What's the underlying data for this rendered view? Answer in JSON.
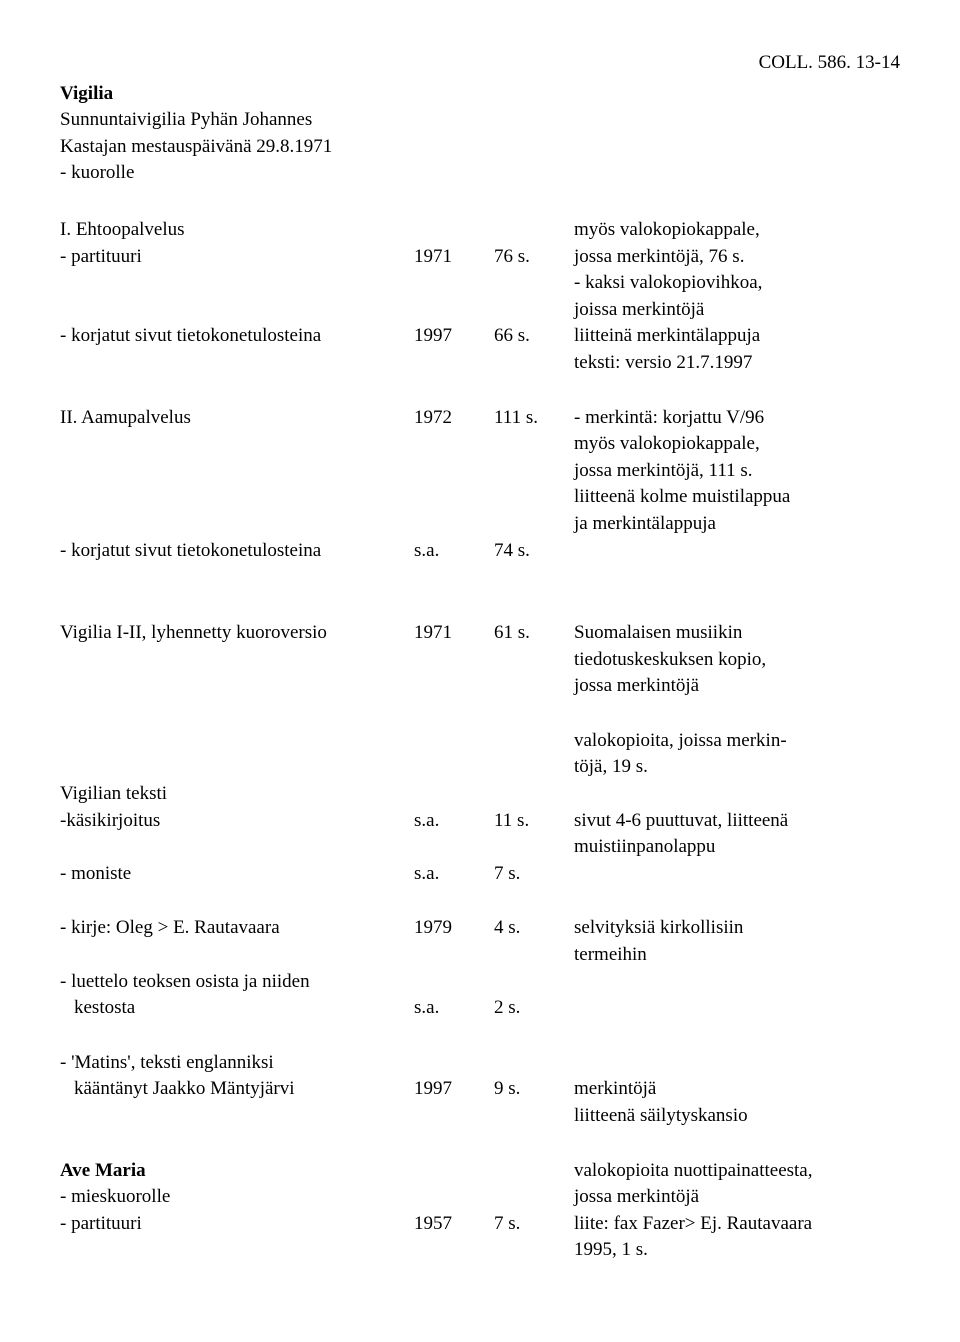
{
  "header_ref": "COLL. 586. 13-14",
  "header": {
    "title": "Vigilia",
    "line2": "Sunnuntaivigilia Pyhän Johannes",
    "line3": "Kastajan mestauspäivänä 29.8.1971",
    "line4": "- kuorolle"
  },
  "rows": [
    {
      "c1": "I. Ehtoopalvelus",
      "c2": "",
      "c3": "",
      "c4": "myös valokopiokappale,"
    },
    {
      "c1": "- partituuri",
      "c2": "1971",
      "c3": "76 s.",
      "c4": "jossa merkintöjä, 76 s."
    },
    {
      "c1": "",
      "c2": "",
      "c3": "",
      "c4": "- kaksi valokopiovihkoa,"
    },
    {
      "c1": "",
      "c2": "",
      "c3": "",
      "c4": "joissa merkintöjä"
    },
    {
      "c1": "- korjatut sivut tietokonetulosteina",
      "c2": "1997",
      "c3": "66 s.",
      "c4": "liitteinä merkintälappuja"
    },
    {
      "c1": "",
      "c2": "",
      "c3": "",
      "c4": "teksti: versio 21.7.1997"
    },
    {
      "gap": true
    },
    {
      "c1": "II. Aamupalvelus",
      "c2": "1972",
      "c3": "111 s.",
      "c4": "- merkintä: korjattu V/96"
    },
    {
      "c1": "",
      "c2": "",
      "c3": "",
      "c4": "myös valokopiokappale,"
    },
    {
      "c1": "",
      "c2": "",
      "c3": "",
      "c4": "jossa merkintöjä, 111 s."
    },
    {
      "c1": "",
      "c2": "",
      "c3": "",
      "c4": "liitteenä kolme muistilappua"
    },
    {
      "c1": "",
      "c2": "",
      "c3": "",
      "c4": "ja merkintälappuja"
    },
    {
      "c1": "- korjatut sivut tietokonetulosteina",
      "c2": "s.a.",
      "c3": "74 s.",
      "c4": ""
    },
    {
      "gap": true
    },
    {
      "gap": true
    },
    {
      "c1": "Vigilia I-II, lyhennetty kuoroversio",
      "c2": "1971",
      "c3": "61 s.",
      "c4": "Suomalaisen musiikin"
    },
    {
      "c1": "",
      "c2": "",
      "c3": "",
      "c4": "tiedotuskeskuksen kopio,"
    },
    {
      "c1": "",
      "c2": "",
      "c3": "",
      "c4": "jossa merkintöjä"
    },
    {
      "gap": true
    },
    {
      "c1": "",
      "c2": "",
      "c3": "",
      "c4": "valokopioita, joissa merkin-"
    },
    {
      "c1": "",
      "c2": "",
      "c3": "",
      "c4": "töjä, 19 s."
    },
    {
      "c1": "Vigilian teksti",
      "c2": "",
      "c3": "",
      "c4": ""
    },
    {
      "c1": "-käsikirjoitus",
      "c2": "s.a.",
      "c3": "11 s.",
      "c4": "sivut 4-6 puuttuvat, liitteenä"
    },
    {
      "c1": "",
      "c2": "",
      "c3": "",
      "c4": "muistiinpanolappu"
    },
    {
      "c1": "- moniste",
      "c2": "s.a.",
      "c3": "7 s.",
      "c4": ""
    },
    {
      "gap": true
    },
    {
      "c1": "- kirje: Oleg > E. Rautavaara",
      "c2": "1979",
      "c3": "4 s.",
      "c4": "selvityksiä kirkollisiin"
    },
    {
      "c1": "",
      "c2": "",
      "c3": "",
      "c4": "termeihin"
    },
    {
      "c1": "- luettelo teoksen osista ja niiden",
      "c2": "",
      "c3": "",
      "c4": ""
    },
    {
      "c1": "kestosta",
      "indent": true,
      "c2": "s.a.",
      "c3": "2 s.",
      "c4": ""
    },
    {
      "gap": true
    },
    {
      "c1": "- 'Matins', teksti englanniksi",
      "c2": "",
      "c3": "",
      "c4": ""
    },
    {
      "c1": "kääntänyt Jaakko Mäntyjärvi",
      "indent": true,
      "c2": "1997",
      "c3": "9 s.",
      "c4": "merkintöjä"
    },
    {
      "c1": "",
      "c2": "",
      "c3": "",
      "c4": "liitteenä säilytyskansio"
    },
    {
      "gap": true
    },
    {
      "c1": "Ave Maria",
      "bold": true,
      "c2": "",
      "c3": "",
      "c4": "valokopioita nuottipainatteesta,"
    },
    {
      "c1": "- mieskuorolle",
      "c2": "",
      "c3": "",
      "c4": "jossa merkintöjä"
    },
    {
      "c1": "- partituuri",
      "c2": "1957",
      "c3": "7 s.",
      "c4": "liite: fax Fazer> Ej. Rautavaara"
    },
    {
      "c1": "",
      "c2": "",
      "c3": "",
      "c4": "1995, 1 s."
    }
  ]
}
